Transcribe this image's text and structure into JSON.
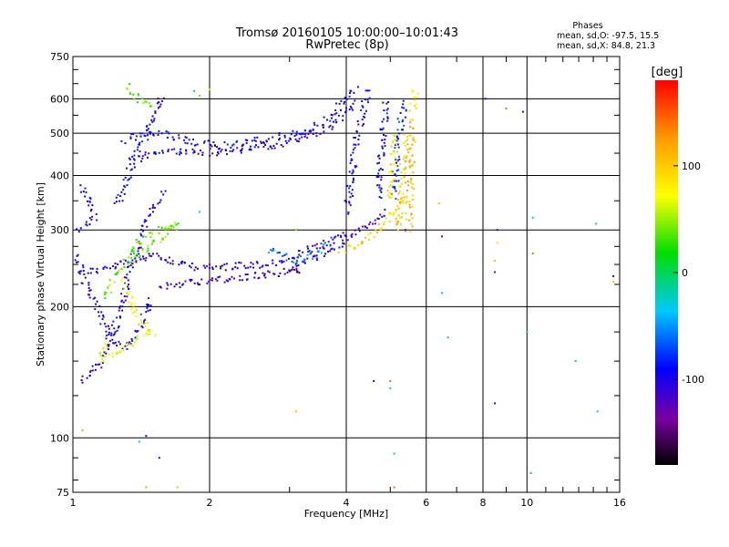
{
  "chart_data": {
    "type": "scatter",
    "title": "Tromsø 20160105 10:00:00–10:01:43",
    "subtitle": "RwPretec (8p)",
    "xlabel": "Frequency [MHz]",
    "ylabel": "Stationary phase Virtual Height [km]",
    "x_scale": "log",
    "y_scale": "log",
    "xlim": [
      1,
      16
    ],
    "ylim": [
      75,
      750
    ],
    "x_ticks": [
      1,
      2,
      4,
      6,
      8,
      10,
      16
    ],
    "x_tick_labels": [
      "1",
      "2",
      "4",
      "6",
      "8",
      "10",
      "16"
    ],
    "y_ticks": [
      75,
      100,
      200,
      300,
      400,
      500,
      600,
      750
    ],
    "y_tick_labels": [
      "75",
      "100",
      "200",
      "300",
      "400",
      "500",
      "600",
      "750"
    ],
    "grid": true,
    "phase_box": {
      "title": "Phases",
      "line_o": "mean, sd,O: -97.5, 15.5",
      "line_x": "mean, sd,X: 84.8, 21.3"
    },
    "colorbar": {
      "label": "[deg]",
      "range": [
        -180,
        180
      ],
      "ticks": [
        100,
        0,
        -100
      ],
      "tick_labels": [
        "100",
        "0",
        "-100"
      ],
      "colormap": "rainbow"
    },
    "traces": [
      {
        "phase": -105,
        "points": [
          [
            1.05,
            240
          ],
          [
            1.2,
            245
          ],
          [
            1.35,
            255
          ],
          [
            1.5,
            265
          ],
          [
            1.7,
            250
          ],
          [
            2.0,
            245
          ],
          [
            2.3,
            248
          ],
          [
            2.7,
            250
          ],
          [
            3.1,
            262
          ],
          [
            3.5,
            275
          ],
          [
            3.8,
            285
          ],
          [
            4.0,
            292
          ]
        ]
      },
      {
        "phase": -110,
        "points": [
          [
            1.55,
            222
          ],
          [
            1.8,
            228
          ],
          [
            2.1,
            230
          ],
          [
            2.5,
            235
          ],
          [
            2.9,
            240
          ],
          [
            3.3,
            255
          ],
          [
            3.7,
            270
          ],
          [
            4.0,
            285
          ],
          [
            4.3,
            300
          ],
          [
            4.6,
            315
          ],
          [
            4.9,
            330
          ]
        ]
      },
      {
        "phase": -100,
        "points": [
          [
            1.35,
            430
          ],
          [
            1.5,
            450
          ],
          [
            1.7,
            455
          ],
          [
            2.0,
            452
          ],
          [
            2.3,
            458
          ],
          [
            2.6,
            465
          ],
          [
            2.9,
            472
          ],
          [
            3.2,
            490
          ],
          [
            3.5,
            505
          ],
          [
            3.8,
            530
          ],
          [
            4.0,
            560
          ],
          [
            4.2,
            600
          ]
        ]
      },
      {
        "phase": -95,
        "points": [
          [
            1.3,
            480
          ],
          [
            1.45,
            500
          ],
          [
            1.6,
            495
          ],
          [
            1.8,
            480
          ],
          [
            2.1,
            465
          ],
          [
            2.5,
            480
          ],
          [
            3.0,
            495
          ],
          [
            3.4,
            515
          ],
          [
            3.8,
            560
          ],
          [
            4.1,
            620
          ],
          [
            4.2,
            640
          ]
        ]
      },
      {
        "phase": -100,
        "points": [
          [
            1.02,
            260
          ],
          [
            1.06,
            230
          ],
          [
            1.1,
            210
          ],
          [
            1.15,
            190
          ],
          [
            1.2,
            175
          ],
          [
            1.25,
            165
          ],
          [
            1.3,
            160
          ],
          [
            1.35,
            170
          ],
          [
            1.4,
            180
          ],
          [
            1.45,
            195
          ],
          [
            1.5,
            210
          ]
        ]
      },
      {
        "phase": -100,
        "points": [
          [
            1.05,
            135
          ],
          [
            1.1,
            140
          ],
          [
            1.15,
            150
          ],
          [
            1.2,
            165
          ],
          [
            1.25,
            185
          ],
          [
            1.3,
            215
          ],
          [
            1.35,
            250
          ],
          [
            1.4,
            280
          ],
          [
            1.45,
            310
          ],
          [
            1.5,
            340
          ],
          [
            1.6,
            370
          ]
        ]
      },
      {
        "phase": -95,
        "points": [
          [
            1.25,
            340
          ],
          [
            1.3,
            380
          ],
          [
            1.35,
            420
          ],
          [
            1.4,
            460
          ],
          [
            1.45,
            500
          ],
          [
            1.5,
            540
          ],
          [
            1.55,
            590
          ],
          [
            1.6,
            610
          ]
        ]
      },
      {
        "phase": -95,
        "points": [
          [
            4.0,
            330
          ],
          [
            4.1,
            380
          ],
          [
            4.15,
            430
          ],
          [
            4.2,
            480
          ],
          [
            4.3,
            530
          ],
          [
            4.4,
            590
          ],
          [
            4.5,
            640
          ]
        ]
      },
      {
        "phase": -90,
        "points": [
          [
            4.7,
            360
          ],
          [
            4.75,
            420
          ],
          [
            4.8,
            480
          ],
          [
            4.85,
            540
          ],
          [
            4.9,
            600
          ]
        ]
      },
      {
        "phase": -80,
        "points": [
          [
            5.1,
            360
          ],
          [
            5.15,
            420
          ],
          [
            5.2,
            480
          ],
          [
            5.3,
            540
          ],
          [
            5.35,
            600
          ]
        ]
      },
      {
        "phase": 95,
        "points": [
          [
            3.9,
            270
          ],
          [
            4.1,
            275
          ],
          [
            4.3,
            280
          ],
          [
            4.5,
            290
          ],
          [
            4.7,
            300
          ],
          [
            4.9,
            315
          ],
          [
            5.1,
            330
          ],
          [
            5.3,
            345
          ],
          [
            5.5,
            360
          ]
        ]
      },
      {
        "phase": 100,
        "points": [
          [
            5.2,
            300
          ],
          [
            5.25,
            340
          ],
          [
            5.3,
            380
          ],
          [
            5.35,
            420
          ],
          [
            5.4,
            460
          ],
          [
            5.45,
            500
          ]
        ]
      },
      {
        "phase": 110,
        "points": [
          [
            5.5,
            300
          ],
          [
            5.52,
            340
          ],
          [
            5.54,
            380
          ],
          [
            5.56,
            420
          ],
          [
            5.58,
            460
          ],
          [
            5.6,
            500
          ],
          [
            5.6,
            540
          ]
        ]
      },
      {
        "phase": 85,
        "points": [
          [
            5.0,
            350
          ],
          [
            5.05,
            400
          ],
          [
            5.1,
            450
          ],
          [
            5.15,
            500
          ]
        ]
      },
      {
        "phase": 75,
        "points": [
          [
            5.6,
            560
          ],
          [
            5.65,
            600
          ],
          [
            5.7,
            640
          ]
        ]
      },
      {
        "phase": 40,
        "points": [
          [
            1.3,
            260
          ],
          [
            1.4,
            280
          ],
          [
            1.55,
            300
          ],
          [
            1.7,
            310
          ],
          [
            1.25,
            240
          ],
          [
            1.2,
            220
          ],
          [
            1.15,
            210
          ]
        ]
      },
      {
        "phase": 35,
        "points": [
          [
            1.32,
            640
          ],
          [
            1.35,
            620
          ],
          [
            1.4,
            600
          ],
          [
            1.5,
            580
          ]
        ]
      },
      {
        "phase": 70,
        "points": [
          [
            1.3,
            230
          ],
          [
            1.35,
            200
          ],
          [
            1.4,
            185
          ],
          [
            1.5,
            175
          ],
          [
            1.15,
            150
          ],
          [
            1.2,
            170
          ]
        ]
      },
      {
        "phase": -60,
        "points": [
          [
            2.7,
            270
          ],
          [
            2.9,
            260
          ],
          [
            3.2,
            255
          ],
          [
            3.5,
            270
          ],
          [
            3.7,
            285
          ]
        ]
      },
      {
        "phase": -150,
        "points": [
          [
            3.0,
            245
          ],
          [
            3.2,
            240
          ]
        ]
      },
      {
        "phase": -100,
        "points": [
          [
            1.05,
            380
          ],
          [
            1.08,
            350
          ],
          [
            1.12,
            320
          ],
          [
            1.02,
            300
          ]
        ]
      }
    ],
    "scattered_points": [
      {
        "x": 6.5,
        "y": 290,
        "phase": -140
      },
      {
        "x": 6.5,
        "y": 215,
        "phase": -20
      },
      {
        "x": 6.7,
        "y": 170,
        "phase": -20
      },
      {
        "x": 6.4,
        "y": 345,
        "phase": 110
      },
      {
        "x": 8.6,
        "y": 300,
        "phase": -110
      },
      {
        "x": 8.6,
        "y": 280,
        "phase": 90
      },
      {
        "x": 8.5,
        "y": 255,
        "phase": 110
      },
      {
        "x": 8.5,
        "y": 240,
        "phase": -130
      },
      {
        "x": 8.5,
        "y": 120,
        "phase": -110
      },
      {
        "x": 9.0,
        "y": 570,
        "phase": 140
      },
      {
        "x": 8.1,
        "y": 600,
        "phase": -100
      },
      {
        "x": 9.8,
        "y": 560,
        "phase": -110
      },
      {
        "x": 10.3,
        "y": 320,
        "phase": -20
      },
      {
        "x": 10.3,
        "y": 265,
        "phase": 140
      },
      {
        "x": 10.0,
        "y": 175,
        "phase": -20
      },
      {
        "x": 10.2,
        "y": 83,
        "phase": -20
      },
      {
        "x": 12.8,
        "y": 150,
        "phase": -20
      },
      {
        "x": 14.2,
        "y": 310,
        "phase": -20
      },
      {
        "x": 14.3,
        "y": 115,
        "phase": -20
      },
      {
        "x": 15.5,
        "y": 235,
        "phase": -100
      },
      {
        "x": 15.5,
        "y": 228,
        "phase": 110
      },
      {
        "x": 5.0,
        "y": 135,
        "phase": 140
      },
      {
        "x": 5.0,
        "y": 130,
        "phase": -20
      },
      {
        "x": 4.6,
        "y": 135,
        "phase": -110
      },
      {
        "x": 5.1,
        "y": 92,
        "phase": -20
      },
      {
        "x": 5.1,
        "y": 77,
        "phase": 140
      },
      {
        "x": 3.1,
        "y": 115,
        "phase": 110
      },
      {
        "x": 1.05,
        "y": 104,
        "phase": 40
      },
      {
        "x": 1.45,
        "y": 101,
        "phase": -100
      },
      {
        "x": 1.55,
        "y": 90,
        "phase": -110
      },
      {
        "x": 1.45,
        "y": 77,
        "phase": 40
      },
      {
        "x": 1.7,
        "y": 77,
        "phase": 110
      },
      {
        "x": 1.4,
        "y": 98,
        "phase": -20
      },
      {
        "x": 5.4,
        "y": 300,
        "phase": -130
      },
      {
        "x": 3.1,
        "y": 300,
        "phase": 40
      },
      {
        "x": 1.9,
        "y": 330,
        "phase": -20
      },
      {
        "x": 1.9,
        "y": 610,
        "phase": 40
      },
      {
        "x": 1.85,
        "y": 625,
        "phase": -20
      },
      {
        "x": 2.0,
        "y": 630,
        "phase": 60
      }
    ]
  }
}
